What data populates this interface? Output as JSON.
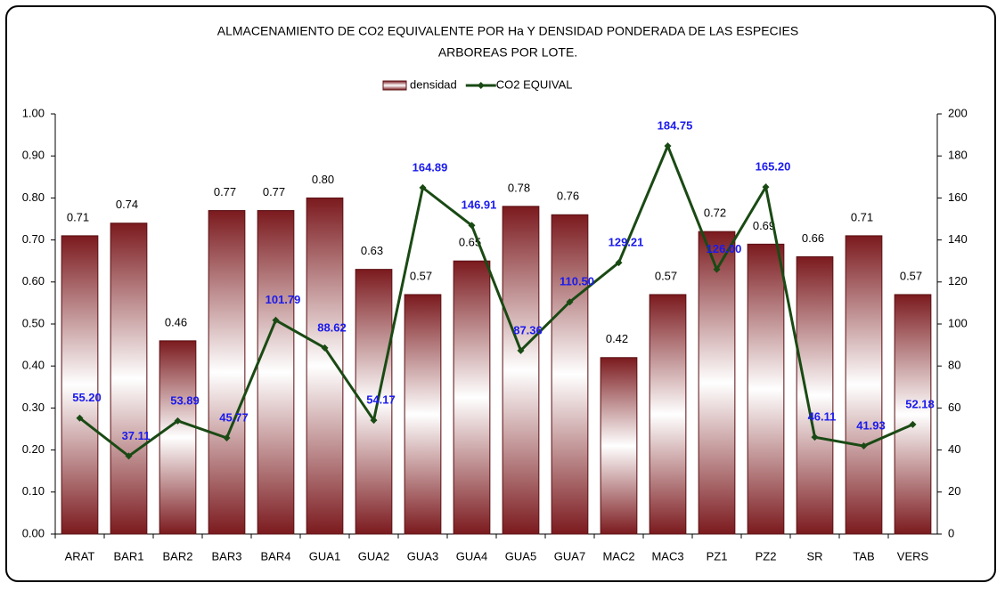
{
  "chart_data": {
    "type": "bar_line",
    "title": [
      "ALMACENAMIENTO DE CO2 EQUIVALENTE POR Ha Y DENSIDAD PONDERADA DE LAS ESPECIES",
      "ARBOREAS POR LOTE."
    ],
    "categories": [
      "ARAT",
      "BAR1",
      "BAR2",
      "BAR3",
      "BAR4",
      "GUA1",
      "GUA2",
      "GUA3",
      "GUA4",
      "GUA5",
      "GUA7",
      "MAC2",
      "MAC3",
      "PZ1",
      "PZ2",
      "SR",
      "TAB",
      "VERS"
    ],
    "series": [
      {
        "name": "densidad",
        "type": "bar",
        "color": "#7b1a1e",
        "values": [
          0.71,
          0.74,
          0.46,
          0.77,
          0.77,
          0.8,
          0.63,
          0.57,
          0.65,
          0.78,
          0.76,
          0.42,
          0.57,
          0.72,
          0.69,
          0.66,
          0.71,
          0.57
        ],
        "value_labels": [
          "0.71",
          "0.74",
          "0.46",
          "0.77",
          "0.77",
          "0.80",
          "0.63",
          "0.57",
          "0.65",
          "0.78",
          "0.76",
          "0.42",
          "0.57",
          "0.72",
          "0.69",
          "0.66",
          "0.71",
          "0.57"
        ]
      },
      {
        "name": "CO2 EQUIVAL",
        "type": "line",
        "axis": "y2",
        "color": "#1a4a14",
        "label_color": "#1a1aee",
        "values": [
          55.2,
          37.11,
          53.89,
          45.77,
          101.79,
          88.62,
          54.17,
          164.89,
          146.91,
          87.36,
          110.5,
          129.21,
          184.75,
          126.0,
          165.2,
          46.11,
          41.93,
          52.18
        ],
        "value_labels": [
          "55.20",
          "37.11",
          "53.89",
          "45.77",
          "101.79",
          "88.62",
          "54.17",
          "164.89",
          "146.91",
          "87.36",
          "110.50",
          "129.21",
          "184.75",
          "126.00",
          "165.20",
          "46.11",
          "41.93",
          "52.18"
        ]
      }
    ],
    "ylim": [
      0,
      1
    ],
    "yticks": [
      {
        "value": 0,
        "label": "0.00"
      },
      {
        "value": 0.1,
        "label": "0.10"
      },
      {
        "value": 0.2,
        "label": "0.20"
      },
      {
        "value": 0.3,
        "label": "0.30"
      },
      {
        "value": 0.4,
        "label": "0.40"
      },
      {
        "value": 0.5,
        "label": "0.50"
      },
      {
        "value": 0.6,
        "label": "0.60"
      },
      {
        "value": 0.7,
        "label": "0.70"
      },
      {
        "value": 0.8,
        "label": "0.80"
      },
      {
        "value": 0.9,
        "label": "0.90"
      },
      {
        "value": 1,
        "label": "1.00"
      }
    ],
    "y2lim": [
      0,
      200
    ],
    "y2ticks": [
      0,
      20,
      40,
      60,
      80,
      100,
      120,
      140,
      160,
      180,
      200
    ],
    "legend": "top"
  }
}
